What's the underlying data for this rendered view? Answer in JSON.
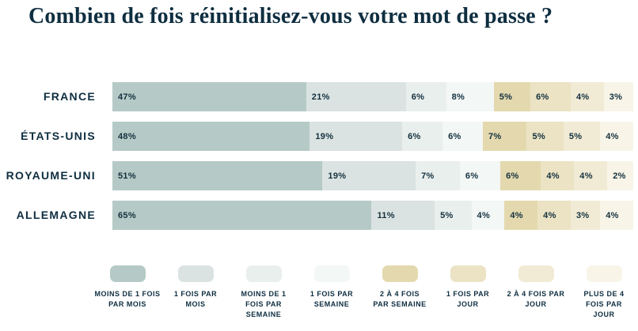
{
  "title": "Combien de fois réinitialisez-vous votre mot de passe ?",
  "text_color": "#0e2e40",
  "background_color": "#ffffff",
  "chart_data": {
    "type": "bar",
    "variant": "horizontal-stacked",
    "unit": "%",
    "title": "Combien de fois réinitialisez-vous votre mot de passe ?",
    "categories": [
      "FRANCE",
      "ÉTATS-UNIS",
      "ROYAUME-UNI",
      "ALLEMAGNE"
    ],
    "series": [
      {
        "name": "MOINS DE 1 FOIS PAR MOIS",
        "color": "#b5cac6",
        "values": [
          47,
          48,
          51,
          65
        ]
      },
      {
        "name": "1 FOIS PAR MOIS",
        "color": "#dae3e1",
        "values": [
          21,
          19,
          19,
          11
        ]
      },
      {
        "name": "MOINS DE 1 FOIS PAR SEMAINE",
        "color": "#e9efed",
        "values": [
          6,
          6,
          7,
          5
        ]
      },
      {
        "name": "1 FOIS PAR SEMAINE",
        "color": "#f3f7f6",
        "values": [
          8,
          6,
          6,
          4
        ]
      },
      {
        "name": "2 À 4 FOIS PAR SEMAINE",
        "color": "#e4d9ae",
        "values": [
          5,
          7,
          6,
          4
        ]
      },
      {
        "name": "1 FOIS PAR JOUR",
        "color": "#ebe3c4",
        "values": [
          6,
          5,
          4,
          4
        ]
      },
      {
        "name": "2 À 4 FOIS PAR JOUR",
        "color": "#f1ebd5",
        "values": [
          4,
          5,
          4,
          3
        ]
      },
      {
        "name": "PLUS DE 4 FOIS PAR JOUR",
        "color": "#f8f5e8",
        "values": [
          3,
          4,
          2,
          4
        ]
      }
    ],
    "legend_labels": [
      "MOINS DE 1 FOIS\nPAR MOIS",
      "1 FOIS PAR\nMOIS",
      "MOINS DE 1\nFOIS PAR\nSEMAINE",
      "1 FOIS PAR\nSEMAINE",
      "2 À 4 FOIS\nPAR SEMAINE",
      "1 FOIS PAR\nJOUR",
      "2 À 4 FOIS PAR\nJOUR",
      "PLUS DE 4\nFOIS PAR\nJOUR"
    ],
    "legend_position": "bottom",
    "value_suffix": "%",
    "xlim": [
      0,
      100
    ],
    "grid": false
  }
}
